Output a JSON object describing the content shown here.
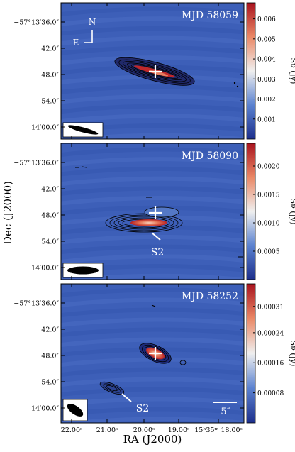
{
  "figure": {
    "ylabel": "Dec (J2000)",
    "xlabel": "RA (J2000)",
    "x_ticks": [
      "22.00ˢ",
      "21.00ˢ",
      "20.00ˢ",
      "19.00ˢ",
      "15ʰ35ᵐ 18.00ˢ"
    ],
    "y_ticks": [
      "−57°13′36.0″",
      "42.0″",
      "48.0″",
      "54.0″",
      "14′00.0″"
    ],
    "compass": {
      "north": "N",
      "east": "E"
    },
    "scale_bar_label": "5″",
    "colorbar_label": "Sν (Jy)",
    "colors": {
      "background_blue": "#3d5fb8",
      "contour": "#000000",
      "marker": "#ffffff"
    }
  },
  "chart_data": [
    {
      "type": "heatmap",
      "title": "MJD 58059",
      "colorbar_ticks": [
        "0.001",
        "0.002",
        "0.003",
        "0.004",
        "0.005",
        "0.006"
      ],
      "colorbar_range": [
        0,
        0.0068
      ],
      "source_position": {
        "ra_s": 19.8,
        "dec": "48.0″"
      },
      "annotation": ""
    },
    {
      "type": "heatmap",
      "title": "MJD 58090",
      "colorbar_ticks": [
        "0.0005",
        "0.0010",
        "0.0015",
        "0.0020"
      ],
      "colorbar_range": [
        0,
        0.0024
      ],
      "source_position": {
        "ra_s": 19.8,
        "dec": "48.0″"
      },
      "annotation": "S2"
    },
    {
      "type": "heatmap",
      "title": "MJD 58252",
      "colorbar_ticks": [
        "0.00008",
        "0.00016",
        "0.00024",
        "0.00031"
      ],
      "colorbar_range": [
        0,
        0.00037
      ],
      "source_position": {
        "ra_s": 19.8,
        "dec": "48.0″"
      },
      "annotation": "S2"
    }
  ]
}
